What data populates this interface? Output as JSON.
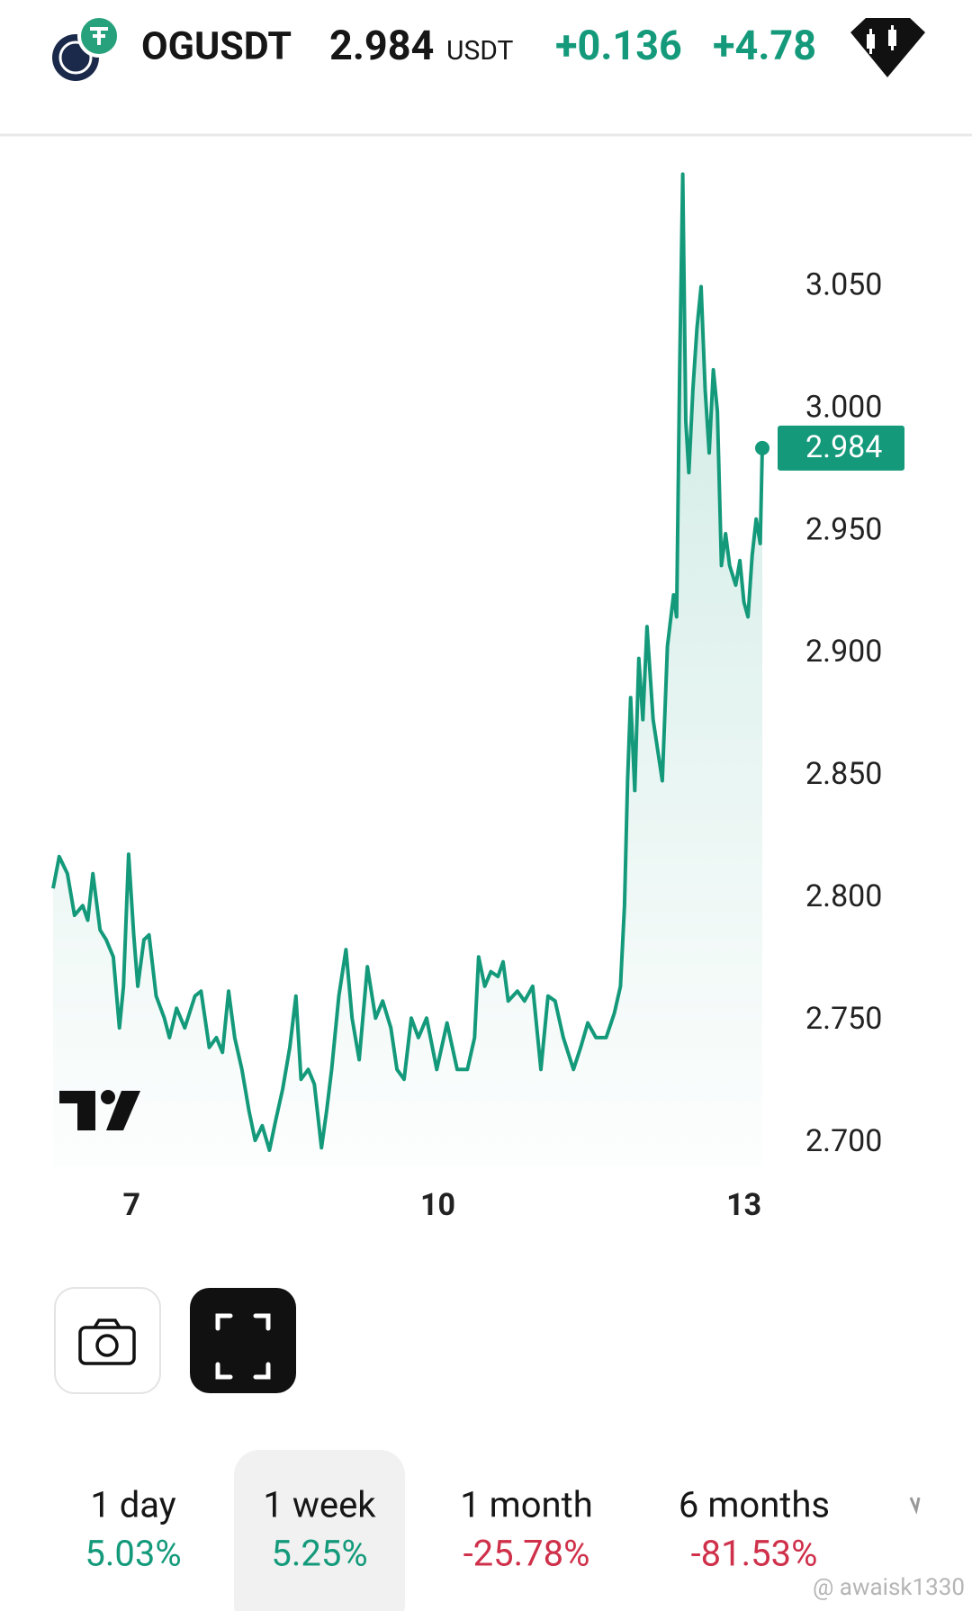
{
  "header": {
    "symbol": "OGUSDT",
    "price": "2.984",
    "unit": "USDT",
    "change": "+0.136",
    "change_percent": "+4.78"
  },
  "chart_data": {
    "type": "line",
    "color": "#149a7b",
    "x": [
      6.23,
      6.29,
      6.37,
      6.44,
      6.52,
      6.57,
      6.62,
      6.69,
      6.75,
      6.82,
      6.88,
      6.92,
      6.97,
      7.02,
      7.06,
      7.12,
      7.17,
      7.24,
      7.32,
      7.37,
      7.44,
      7.52,
      7.62,
      7.68,
      7.76,
      7.83,
      7.89,
      7.95,
      8.01,
      8.08,
      8.15,
      8.21,
      8.28,
      8.35,
      8.41,
      8.48,
      8.55,
      8.61,
      8.66,
      8.73,
      8.79,
      8.86,
      8.91,
      8.96,
      9.03,
      9.1,
      9.16,
      9.23,
      9.31,
      9.39,
      9.46,
      9.54,
      9.6,
      9.67,
      9.74,
      9.81,
      9.89,
      9.99,
      10.09,
      10.19,
      10.29,
      10.36,
      10.4,
      10.46,
      10.52,
      10.59,
      10.64,
      10.69,
      10.78,
      10.85,
      10.93,
      11.01,
      11.08,
      11.15,
      11.23,
      11.33,
      11.4,
      11.47,
      11.55,
      11.65,
      11.73,
      11.79,
      11.83,
      11.86,
      11.89,
      11.93,
      11.97,
      12.01,
      12.05,
      12.11,
      12.2,
      12.25,
      12.31,
      12.34,
      12.37,
      12.4,
      12.43,
      12.46,
      12.5,
      12.54,
      12.58,
      12.62,
      12.66,
      12.7,
      12.74,
      12.78,
      12.82,
      12.86,
      12.92,
      12.96,
      13.0,
      13.04,
      13.08,
      13.12,
      13.16,
      13.18
    ],
    "values": [
      2.804,
      2.817,
      2.81,
      2.793,
      2.797,
      2.791,
      2.81,
      2.787,
      2.783,
      2.776,
      2.747,
      2.764,
      2.818,
      2.785,
      2.764,
      2.783,
      2.785,
      2.76,
      2.751,
      2.743,
      2.755,
      2.747,
      2.76,
      2.762,
      2.739,
      2.743,
      2.737,
      2.762,
      2.743,
      2.73,
      2.713,
      2.701,
      2.707,
      2.697,
      2.709,
      2.722,
      2.739,
      2.76,
      2.726,
      2.73,
      2.724,
      2.698,
      2.713,
      2.73,
      2.76,
      2.779,
      2.751,
      2.734,
      2.772,
      2.751,
      2.758,
      2.747,
      2.73,
      2.726,
      2.751,
      2.743,
      2.751,
      2.73,
      2.749,
      2.73,
      2.73,
      2.743,
      2.776,
      2.764,
      2.77,
      2.768,
      2.774,
      2.758,
      2.762,
      2.758,
      2.764,
      2.73,
      2.76,
      2.758,
      2.743,
      2.73,
      2.739,
      2.749,
      2.743,
      2.743,
      2.753,
      2.764,
      2.797,
      2.848,
      2.882,
      2.844,
      2.898,
      2.873,
      2.911,
      2.873,
      2.848,
      2.903,
      2.924,
      2.915,
      3.016,
      3.096,
      2.995,
      2.974,
      3.008,
      3.033,
      3.05,
      3.008,
      2.982,
      3.016,
      2.999,
      2.936,
      2.949,
      2.936,
      2.928,
      2.938,
      2.921,
      2.915,
      2.94,
      2.955,
      2.945,
      2.984
    ],
    "xlim": [
      6.23,
      13.18
    ],
    "xticks": [
      7,
      10,
      13
    ],
    "ylim": [
      2.69,
      3.1
    ],
    "yticks": [
      {
        "value": 2.7,
        "label": "2.700"
      },
      {
        "value": 2.75,
        "label": "2.750"
      },
      {
        "value": 2.8,
        "label": "2.800"
      },
      {
        "value": 2.85,
        "label": "2.850"
      },
      {
        "value": 2.9,
        "label": "2.900"
      },
      {
        "value": 2.95,
        "label": "2.950"
      },
      {
        "value": 3.0,
        "label": "3.000"
      },
      {
        "value": 3.05,
        "label": "3.050"
      }
    ],
    "grid": false
  },
  "periods": [
    {
      "label": "1 day",
      "change": "5.03%"
    },
    {
      "label": "1 week",
      "change": "5.25%"
    },
    {
      "label": "1 month",
      "change": "-25.78%"
    },
    {
      "label": "6 months",
      "change": "-81.53%"
    }
  ],
  "watermark": "@ awaisk1330"
}
